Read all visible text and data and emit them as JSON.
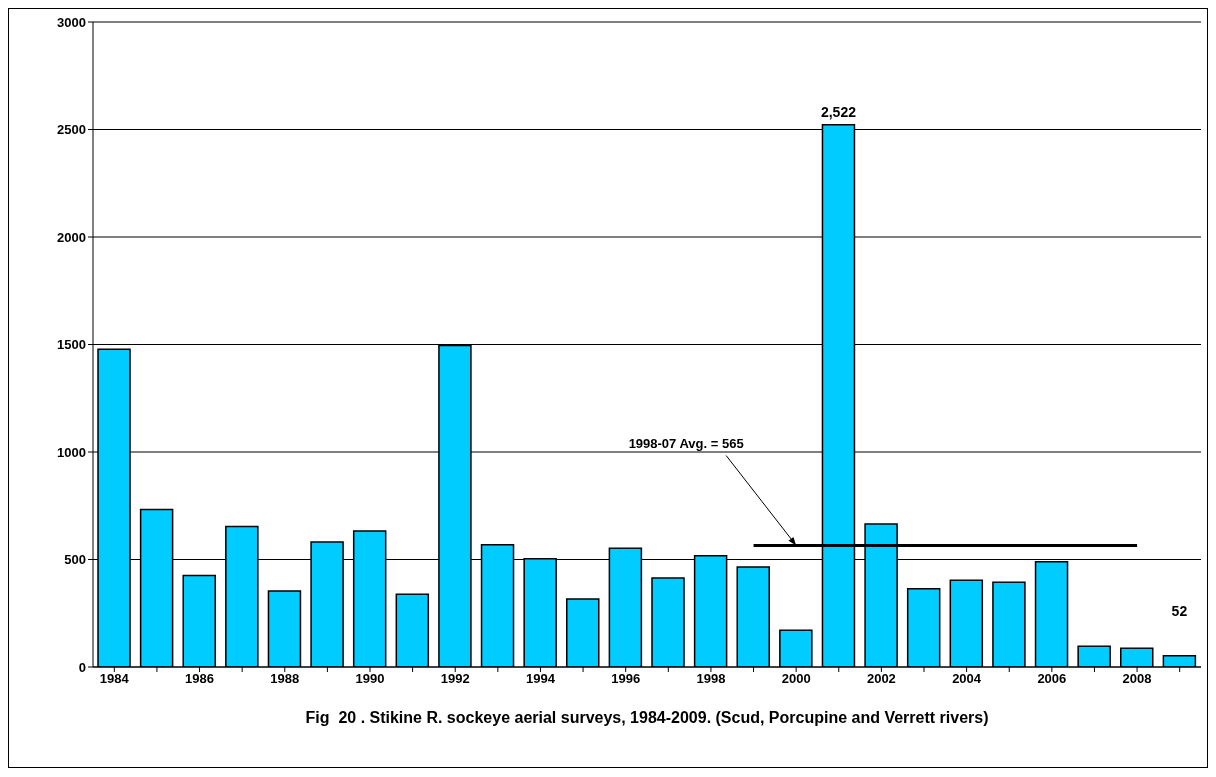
{
  "chart_data": {
    "type": "bar",
    "title": "Fig  20 . Stikine R. sockeye aerial surveys, 1984-2009. (Scud, Porcupine and Verrett rivers)",
    "categories": [
      "1984",
      null,
      "1986",
      null,
      "1988",
      null,
      "1990",
      null,
      "1992",
      null,
      "1994",
      null,
      "1996",
      null,
      "1998",
      null,
      "2000",
      null,
      "2002",
      null,
      "2004",
      null,
      "2006",
      null,
      "2008",
      null
    ],
    "series": [
      {
        "color": "#00ccff",
        "values": [
          1478,
          733,
          426,
          654,
          353,
          581,
          632,
          338,
          1495,
          569,
          503,
          316,
          552,
          414,
          517,
          465,
          171,
          2522,
          665,
          364,
          403,
          394,
          489,
          97,
          87,
          52
        ],
        "value_labels": [
          null,
          null,
          null,
          null,
          null,
          null,
          null,
          null,
          null,
          null,
          null,
          null,
          null,
          null,
          null,
          null,
          null,
          "2,522",
          null,
          null,
          null,
          null,
          null,
          null,
          null,
          "52"
        ]
      },
      {
        "type": "line",
        "color": "#000000",
        "values": [
          null,
          null,
          null,
          null,
          null,
          null,
          null,
          null,
          null,
          null,
          null,
          null,
          null,
          null,
          null,
          565,
          565,
          565,
          565,
          565,
          565,
          565,
          565,
          565,
          565,
          null
        ]
      }
    ],
    "annotations": [
      {
        "text": "1998-07 Avg. = 565",
        "x": "2000",
        "y": 565
      }
    ],
    "ylim": [
      0,
      3000
    ],
    "yticks": [
      0,
      500,
      1000,
      1500,
      2000,
      2500,
      3000
    ],
    "grid": "y",
    "legend": false,
    "marker": "none",
    "line_style": "solid"
  }
}
